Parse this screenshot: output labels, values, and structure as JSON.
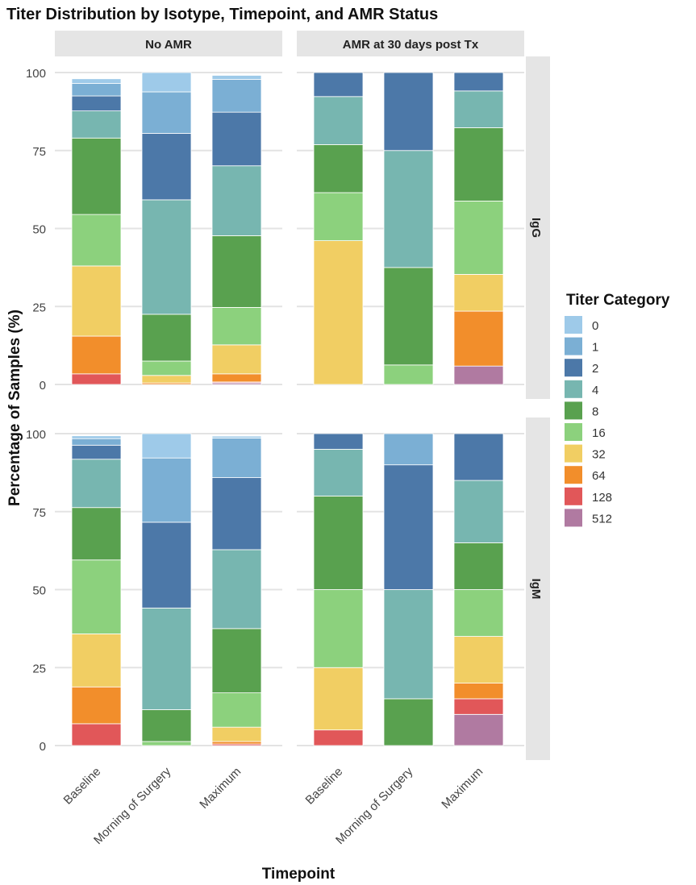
{
  "chart_data": {
    "type": "bar",
    "stacked": true,
    "title": "Titer Distribution by Isotype, Timepoint, and AMR Status",
    "xlabel": "Timepoint",
    "ylabel": "Percentage of Samples (%)",
    "ylim": [
      0,
      100
    ],
    "yticks": [
      "0",
      "25",
      "50",
      "75",
      "100"
    ],
    "col_facets": [
      "No AMR",
      "AMR at 30 days post Tx"
    ],
    "row_facets": [
      "IgG",
      "IgM"
    ],
    "categories": [
      "Baseline",
      "Morning of Surgery",
      "Maximum"
    ],
    "legend": {
      "title": "Titer Category",
      "position": "right",
      "entries": [
        "0",
        "1",
        "2",
        "4",
        "8",
        "16",
        "32",
        "64",
        "128",
        "512"
      ],
      "colors": [
        "#9ecae9",
        "#7bafd4",
        "#4c78a8",
        "#77b6b0",
        "#59a14f",
        "#8cd17d",
        "#f1ce63",
        "#f28e2b",
        "#e15759",
        "#b07aa1"
      ]
    },
    "panels": [
      {
        "row": "IgG",
        "col": "No AMR",
        "bars": [
          {
            "0": 1.5,
            "1": 4.0,
            "2": 4.8,
            "4": 8.7,
            "8": 24.5,
            "16": 16.5,
            "32": 22.5,
            "64": 12.1,
            "128": 3.4,
            "512": 0
          },
          {
            "0": 6.2,
            "1": 13.3,
            "2": 21.3,
            "4": 36.7,
            "8": 15.0,
            "16": 4.6,
            "32": 2.4,
            "64": 0.5,
            "128": 0,
            "512": 0
          },
          {
            "0": 1.3,
            "1": 10.5,
            "2": 17.2,
            "4": 22.4,
            "8": 23.0,
            "16": 12.0,
            "32": 9.3,
            "64": 2.6,
            "128": 0.3,
            "512": 0.5
          }
        ]
      },
      {
        "row": "IgG",
        "col": "AMR at 30 days post Tx",
        "bars": [
          {
            "0": 0,
            "1": 0,
            "2": 7.7,
            "4": 15.4,
            "8": 15.4,
            "16": 15.4,
            "32": 46.1,
            "64": 0,
            "128": 0,
            "512": 0
          },
          {
            "0": 0,
            "1": 0,
            "2": 25,
            "4": 37.5,
            "8": 31.25,
            "16": 6.25,
            "32": 0,
            "64": 0,
            "128": 0,
            "512": 0
          },
          {
            "0": 0,
            "1": 0,
            "2": 5.9,
            "4": 11.8,
            "8": 23.5,
            "16": 23.5,
            "32": 11.8,
            "64": 17.6,
            "128": 0,
            "512": 5.9
          }
        ]
      },
      {
        "row": "IgM",
        "col": "No AMR",
        "bars": [
          {
            "0": 0.9,
            "1": 2.1,
            "2": 4.5,
            "4": 15.5,
            "8": 16.8,
            "16": 23.7,
            "32": 17.0,
            "64": 11.8,
            "128": 7.0,
            "512": 0
          },
          {
            "0": 7.8,
            "1": 20.6,
            "2": 27.5,
            "4": 32.6,
            "8": 10.2,
            "16": 1.3,
            "32": 0,
            "64": 0,
            "128": 0,
            "512": 0
          },
          {
            "0": 0.6,
            "1": 12.7,
            "2": 23.1,
            "4": 25.3,
            "8": 20.6,
            "16": 11.0,
            "32": 4.6,
            "64": 0.8,
            "128": 0.5,
            "512": 0
          }
        ]
      },
      {
        "row": "IgM",
        "col": "AMR at 30 days post Tx",
        "bars": [
          {
            "0": 0,
            "1": 0,
            "2": 5,
            "4": 15,
            "8": 30,
            "16": 25,
            "32": 20,
            "64": 0,
            "128": 5,
            "512": 0
          },
          {
            "0": 0,
            "1": 10,
            "2": 40,
            "4": 35,
            "8": 15,
            "16": 0,
            "32": 0,
            "64": 0,
            "128": 0,
            "512": 0
          },
          {
            "0": 0,
            "1": 0,
            "2": 15,
            "4": 20,
            "8": 15,
            "16": 15,
            "32": 15,
            "64": 5,
            "128": 5,
            "512": 10
          }
        ]
      }
    ]
  }
}
